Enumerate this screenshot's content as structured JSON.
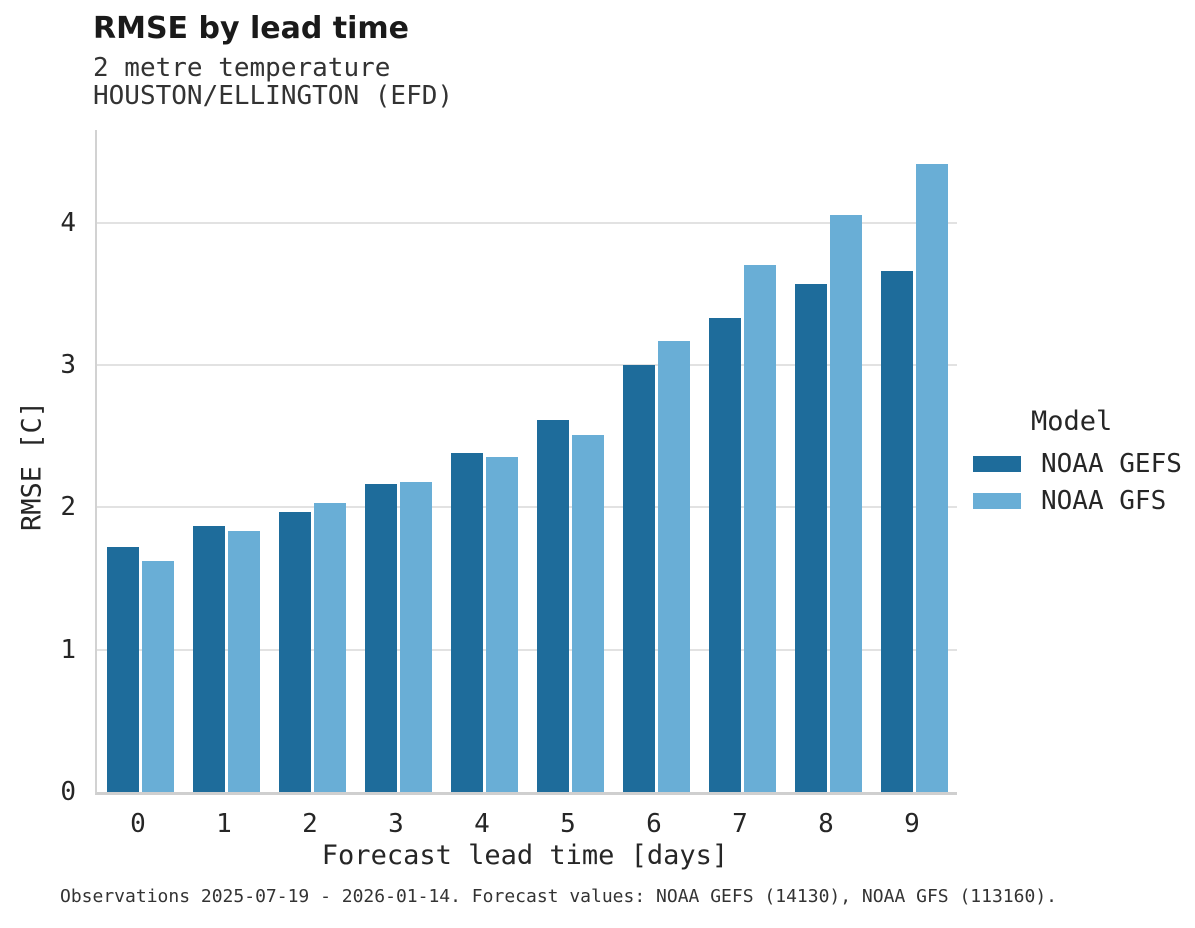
{
  "header": {
    "title": "RMSE by lead time",
    "subtitle_line1": "2 metre temperature",
    "subtitle_line2": "HOUSTON/ELLINGTON (EFD)"
  },
  "chart_data": {
    "type": "bar",
    "title": "RMSE by lead time",
    "subtitle": "2 metre temperature — HOUSTON/ELLINGTON (EFD)",
    "categories": [
      "0",
      "1",
      "2",
      "3",
      "4",
      "5",
      "6",
      "7",
      "8",
      "9"
    ],
    "series": [
      {
        "name": "NOAA GEFS",
        "color": "#1e6c9b",
        "values": [
          1.72,
          1.87,
          1.97,
          2.16,
          2.38,
          2.61,
          3.0,
          3.33,
          3.57,
          3.66
        ]
      },
      {
        "name": "NOAA GFS",
        "color": "#69aed6",
        "values": [
          1.62,
          1.83,
          2.03,
          2.18,
          2.35,
          2.51,
          3.17,
          3.7,
          4.05,
          4.41
        ]
      }
    ],
    "xlabel": "Forecast lead time [days]",
    "ylabel": "RMSE [C]",
    "ylim": [
      0,
      4.65
    ],
    "yticks": [
      0,
      1,
      2,
      3,
      4
    ],
    "grid": "horizontal",
    "legend_title": "Model",
    "legend_position": "right"
  },
  "caption": "Observations 2025-07-19 - 2026-01-14. Forecast values: NOAA GEFS (14130), NOAA GFS (113160)."
}
